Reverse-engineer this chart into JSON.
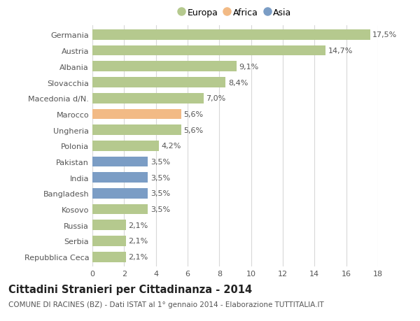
{
  "categories": [
    "Repubblica Ceca",
    "Serbia",
    "Russia",
    "Kosovo",
    "Bangladesh",
    "India",
    "Pakistan",
    "Polonia",
    "Ungheria",
    "Marocco",
    "Macedonia d/N.",
    "Slovacchia",
    "Albania",
    "Austria",
    "Germania"
  ],
  "values": [
    2.1,
    2.1,
    2.1,
    3.5,
    3.5,
    3.5,
    3.5,
    4.2,
    5.6,
    5.6,
    7.0,
    8.4,
    9.1,
    14.7,
    17.5
  ],
  "labels": [
    "2,1%",
    "2,1%",
    "2,1%",
    "3,5%",
    "3,5%",
    "3,5%",
    "3,5%",
    "4,2%",
    "5,6%",
    "5,6%",
    "7,0%",
    "8,4%",
    "9,1%",
    "14,7%",
    "17,5%"
  ],
  "bar_colors": [
    "#b5c98e",
    "#b5c98e",
    "#b5c98e",
    "#b5c98e",
    "#7b9dc5",
    "#7b9dc5",
    "#7b9dc5",
    "#b5c98e",
    "#b5c98e",
    "#f2ba85",
    "#b5c98e",
    "#b5c98e",
    "#b5c98e",
    "#b5c98e",
    "#b5c98e"
  ],
  "color_europa": "#b5c98e",
  "color_africa": "#f2ba85",
  "color_asia": "#7b9dc5",
  "legend_europa": "Europa",
  "legend_africa": "Africa",
  "legend_asia": "Asia",
  "title": "Cittadini Stranieri per Cittadinanza - 2014",
  "subtitle": "COMUNE DI RACINES (BZ) - Dati ISTAT al 1° gennaio 2014 - Elaborazione TUTTITALIA.IT",
  "xlim": [
    0,
    18
  ],
  "xticks": [
    0,
    2,
    4,
    6,
    8,
    10,
    12,
    14,
    16,
    18
  ],
  "background_color": "#ffffff",
  "grid_color": "#d8d8d8",
  "title_fontsize": 10.5,
  "subtitle_fontsize": 7.5,
  "label_fontsize": 8,
  "tick_fontsize": 8,
  "bar_height": 0.65
}
